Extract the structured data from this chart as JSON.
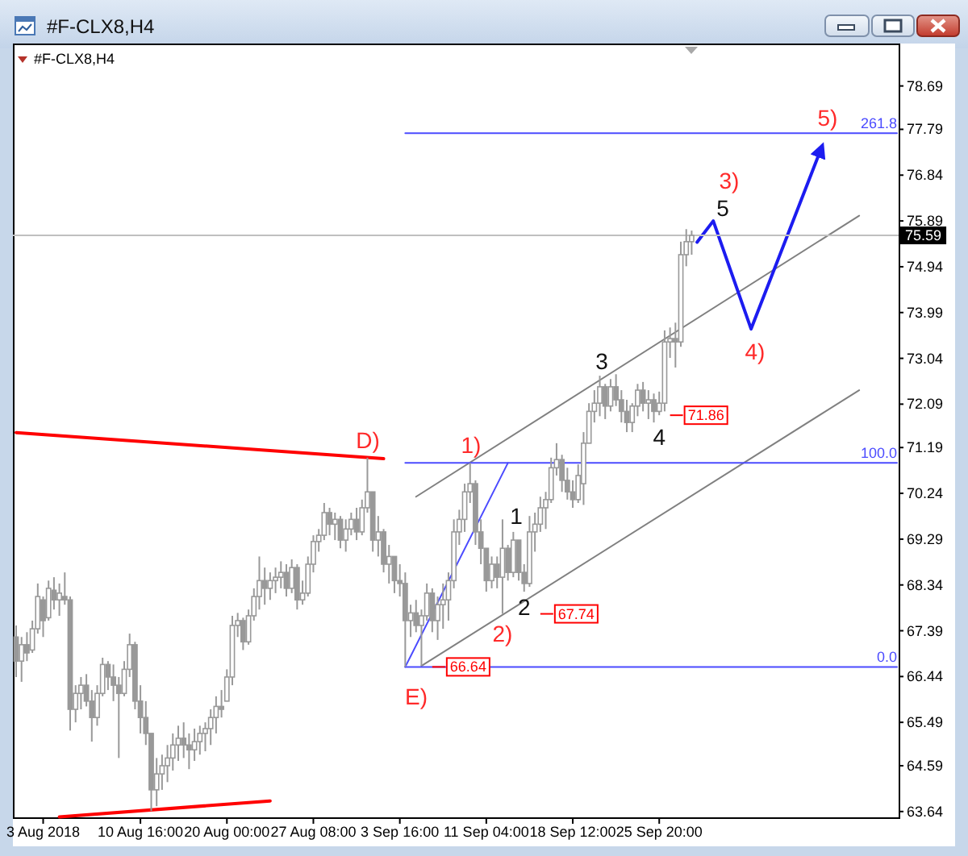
{
  "chart_data": {
    "type": "candlestick",
    "title": "#F-CLX8,H4",
    "subtitle": "#F-CLX8,H4",
    "color": "#999999",
    "categories": [
      null,
      null,
      null,
      null,
      null,
      "3 Aug 2018",
      null,
      null,
      null,
      null,
      null,
      null,
      null,
      null,
      null,
      null,
      null,
      null,
      null,
      null,
      null,
      null,
      null,
      "10 Aug 16:00",
      null,
      null,
      null,
      null,
      null,
      null,
      null,
      null,
      null,
      null,
      null,
      null,
      null,
      null,
      null,
      "20 Aug 00:00",
      null,
      null,
      null,
      null,
      null,
      null,
      null,
      null,
      null,
      null,
      null,
      null,
      null,
      null,
      null,
      "27 Aug 08:00",
      null,
      null,
      null,
      null,
      null,
      null,
      null,
      null,
      null,
      null,
      null,
      null,
      null,
      null,
      null,
      "3 Sep 16:00",
      null,
      null,
      null,
      null,
      null,
      null,
      null,
      null,
      null,
      null,
      null,
      null,
      null,
      null,
      null,
      "11 Sep 04:00",
      null,
      null,
      null,
      null,
      null,
      null,
      null,
      null,
      null,
      null,
      null,
      null,
      null,
      null,
      null,
      "18 Sep 12:00",
      null,
      null,
      null,
      null,
      null,
      null,
      null,
      null,
      null,
      null,
      null,
      null,
      null,
      null,
      null,
      "25 Sep 20:00",
      null,
      null,
      null,
      null,
      null,
      null,
      null,
      null,
      null,
      null,
      null,
      null,
      null,
      null,
      null,
      null,
      null,
      null,
      null,
      null,
      null,
      null,
      null,
      null,
      null,
      null,
      null,
      null,
      null,
      null,
      null,
      null,
      null,
      null,
      null,
      null,
      null,
      null,
      null,
      null,
      null,
      null,
      null,
      null
    ],
    "ohlc": [
      [
        67.26,
        67.5,
        66.43,
        66.76
      ],
      [
        66.76,
        67.26,
        66.33,
        67.1
      ],
      [
        67.1,
        67.36,
        66.76,
        66.93
      ],
      [
        66.99,
        67.6,
        66.93,
        67.43
      ],
      [
        67.43,
        68.37,
        67.33,
        68.1
      ],
      [
        68.03,
        68.1,
        67.26,
        67.6
      ],
      [
        67.66,
        68.43,
        67.6,
        68.27
      ],
      [
        68.23,
        68.5,
        67.83,
        68.03
      ],
      [
        68.03,
        68.37,
        67.7,
        68.17
      ],
      [
        68.1,
        68.6,
        67.93,
        68.03
      ],
      [
        68.03,
        68.1,
        65.32,
        65.76
      ],
      [
        65.76,
        66.26,
        65.49,
        66.09
      ],
      [
        66.09,
        66.43,
        65.76,
        66.26
      ],
      [
        66.26,
        66.49,
        65.82,
        65.93
      ],
      [
        65.93,
        66.16,
        65.09,
        65.59
      ],
      [
        65.59,
        66.26,
        65.42,
        66.09
      ],
      [
        66.09,
        66.83,
        66.03,
        66.69
      ],
      [
        66.69,
        66.76,
        66.16,
        66.43
      ],
      [
        66.43,
        66.69,
        65.93,
        66.26
      ],
      [
        66.26,
        66.43,
        64.75,
        66.09
      ],
      [
        66.09,
        66.76,
        66.03,
        66.59
      ],
      [
        66.59,
        67.33,
        66.43,
        67.1
      ],
      [
        67.1,
        67.16,
        65.76,
        65.93
      ],
      [
        65.93,
        66.26,
        65.26,
        65.59
      ],
      [
        65.59,
        65.93,
        65.02,
        65.26
      ],
      [
        65.26,
        65.26,
        63.65,
        64.09
      ],
      [
        64.09,
        64.75,
        63.75,
        64.42
      ],
      [
        64.42,
        64.82,
        64.09,
        64.59
      ],
      [
        64.59,
        65.02,
        64.25,
        64.75
      ],
      [
        64.75,
        65.26,
        64.49,
        65.02
      ],
      [
        65.02,
        65.42,
        64.69,
        65.16
      ],
      [
        65.16,
        65.49,
        64.75,
        65.02
      ],
      [
        65.02,
        65.26,
        64.52,
        64.92
      ],
      [
        64.92,
        65.36,
        64.69,
        65.09
      ],
      [
        65.09,
        65.42,
        64.82,
        65.26
      ],
      [
        65.26,
        65.49,
        64.89,
        65.36
      ],
      [
        65.36,
        65.76,
        65.02,
        65.59
      ],
      [
        65.59,
        66.03,
        65.26,
        65.82
      ],
      [
        65.82,
        66.16,
        65.59,
        65.76
      ],
      [
        65.93,
        66.59,
        65.93,
        66.43
      ],
      [
        66.43,
        67.7,
        66.26,
        67.5
      ],
      [
        67.5,
        67.76,
        67.26,
        67.6
      ],
      [
        67.6,
        67.66,
        66.99,
        67.16
      ],
      [
        67.16,
        67.83,
        67.1,
        67.7
      ],
      [
        67.7,
        68.27,
        67.6,
        68.1
      ],
      [
        68.1,
        68.93,
        67.83,
        68.43
      ],
      [
        68.43,
        68.7,
        67.93,
        68.27
      ],
      [
        68.27,
        68.6,
        68.03,
        68.43
      ],
      [
        68.43,
        68.7,
        68.17,
        68.5
      ],
      [
        68.5,
        68.83,
        68.27,
        68.6
      ],
      [
        68.6,
        68.77,
        68.1,
        68.27
      ],
      [
        68.27,
        68.87,
        68.17,
        68.7
      ],
      [
        68.7,
        68.77,
        67.83,
        68.03
      ],
      [
        68.03,
        68.43,
        67.93,
        68.17
      ],
      [
        68.17,
        68.93,
        68.1,
        68.77
      ],
      [
        68.77,
        69.37,
        68.6,
        69.24
      ],
      [
        69.24,
        69.5,
        69.03,
        69.37
      ],
      [
        69.37,
        70.04,
        69.27,
        69.84
      ],
      [
        69.84,
        69.94,
        69.37,
        69.6
      ],
      [
        69.6,
        69.84,
        69.27,
        69.7
      ],
      [
        69.7,
        69.77,
        69.1,
        69.27
      ],
      [
        69.27,
        69.7,
        69.03,
        69.5
      ],
      [
        69.5,
        69.84,
        69.37,
        69.7
      ],
      [
        69.7,
        69.94,
        69.27,
        69.44
      ],
      [
        69.44,
        70.11,
        69.37,
        69.94
      ],
      [
        69.94,
        70.98,
        69.84,
        70.27
      ],
      [
        70.27,
        70.27,
        69.03,
        69.27
      ],
      [
        69.27,
        69.77,
        68.93,
        69.44
      ],
      [
        69.44,
        69.5,
        68.6,
        68.77
      ],
      [
        68.77,
        69.17,
        68.37,
        68.93
      ],
      [
        68.93,
        68.93,
        68.17,
        68.43
      ],
      [
        68.43,
        68.77,
        68.1,
        68.37
      ],
      [
        68.37,
        68.6,
        66.64,
        67.6
      ],
      [
        67.6,
        67.93,
        67.26,
        67.76
      ],
      [
        67.76,
        68.03,
        67.36,
        67.5
      ],
      [
        67.5,
        67.83,
        66.66,
        67.7
      ],
      [
        67.7,
        68.37,
        67.6,
        68.17
      ],
      [
        68.17,
        68.27,
        67.36,
        67.6
      ],
      [
        67.6,
        68.1,
        67.2,
        67.93
      ],
      [
        67.93,
        68.37,
        67.43,
        68.03
      ],
      [
        68.03,
        68.6,
        67.6,
        68.43
      ],
      [
        68.43,
        69.7,
        68.27,
        69.44
      ],
      [
        69.44,
        69.9,
        69.17,
        69.7
      ],
      [
        69.7,
        70.44,
        69.44,
        70.27
      ],
      [
        70.27,
        70.87,
        70.04,
        70.44
      ],
      [
        70.44,
        70.51,
        69.17,
        69.44
      ],
      [
        69.44,
        69.7,
        68.77,
        69.1
      ],
      [
        69.1,
        69.1,
        68.2,
        68.43
      ],
      [
        68.43,
        68.93,
        68.27,
        68.77
      ],
      [
        68.77,
        68.93,
        68.27,
        68.5
      ],
      [
        68.5,
        69.7,
        67.74,
        69.1
      ],
      [
        69.1,
        69.17,
        68.43,
        68.6
      ],
      [
        68.6,
        69.44,
        68.5,
        69.27
      ],
      [
        69.27,
        69.27,
        68.43,
        68.6
      ],
      [
        68.6,
        68.77,
        68.2,
        68.37
      ],
      [
        68.37,
        69.77,
        68.3,
        69.44
      ],
      [
        69.44,
        69.84,
        69.03,
        69.6
      ],
      [
        69.6,
        70.17,
        69.44,
        69.94
      ],
      [
        69.94,
        70.27,
        69.5,
        70.11
      ],
      [
        70.11,
        70.98,
        70.04,
        70.77
      ],
      [
        70.77,
        71.28,
        70.61,
        70.94
      ],
      [
        70.94,
        71.04,
        70.27,
        70.51
      ],
      [
        70.51,
        70.77,
        70.11,
        70.27
      ],
      [
        70.27,
        70.51,
        69.94,
        70.11
      ],
      [
        70.11,
        70.84,
        70.04,
        70.61
      ],
      [
        70.44,
        71.51,
        70.0,
        71.28
      ],
      [
        71.28,
        72.11,
        71.28,
        71.94
      ],
      [
        71.94,
        72.38,
        71.71,
        72.11
      ],
      [
        72.11,
        72.68,
        71.84,
        72.45
      ],
      [
        72.45,
        72.51,
        71.78,
        72.05
      ],
      [
        72.05,
        72.61,
        71.94,
        72.45
      ],
      [
        72.45,
        72.71,
        72.05,
        72.18
      ],
      [
        72.18,
        72.38,
        71.71,
        71.94
      ],
      [
        71.94,
        72.18,
        71.51,
        71.71
      ],
      [
        71.71,
        72.11,
        71.51,
        72.05
      ],
      [
        72.05,
        72.51,
        71.84,
        72.38
      ],
      [
        72.38,
        72.55,
        71.94,
        72.11
      ],
      [
        72.11,
        72.38,
        71.78,
        72.18
      ],
      [
        72.18,
        72.31,
        71.71,
        71.94
      ],
      [
        71.94,
        72.35,
        71.86,
        72.11
      ],
      [
        72.11,
        73.62,
        71.94,
        73.38
      ],
      [
        73.38,
        73.68,
        73.05,
        73.45
      ],
      [
        73.45,
        73.78,
        72.85,
        73.38
      ],
      [
        73.38,
        75.46,
        73.28,
        75.19
      ],
      [
        75.19,
        75.72,
        74.95,
        75.46
      ],
      [
        75.46,
        75.69,
        75.19,
        75.59
      ],
      null,
      null,
      null,
      null,
      null,
      null,
      null,
      null,
      null,
      null,
      null,
      null,
      null,
      null,
      null,
      null,
      null,
      null,
      null,
      null,
      null,
      null,
      null,
      null,
      null,
      null,
      null,
      null,
      null,
      null,
      null,
      null,
      null,
      null,
      null,
      null,
      null,
      null
    ],
    "ylim": [
      63.52,
      79.57
    ],
    "yticks": [
      78.69,
      77.79,
      76.84,
      75.89,
      74.94,
      73.99,
      73.04,
      72.09,
      71.19,
      70.24,
      69.29,
      68.34,
      67.39,
      66.44,
      65.49,
      64.59,
      63.64
    ],
    "series": [
      {
        "type": "line",
        "color": "#ff0000",
        "values": [
          71.5,
          null,
          null,
          null,
          null,
          null,
          null,
          null,
          null,
          null,
          null,
          null,
          null,
          null,
          null,
          null,
          null,
          null,
          null,
          null,
          null,
          null,
          null,
          null,
          null,
          null,
          null,
          null,
          null,
          null,
          null,
          null,
          null,
          null,
          null,
          null,
          null,
          null,
          null,
          null,
          null,
          null,
          null,
          null,
          null,
          null,
          null,
          null,
          null,
          null,
          null,
          null,
          null,
          null,
          null,
          null,
          null,
          null,
          null,
          null,
          null,
          null,
          null,
          null,
          null,
          null,
          null,
          null,
          70.96,
          null,
          null,
          null,
          null,
          null,
          null,
          null,
          null,
          null,
          null,
          null,
          null,
          null,
          null,
          null,
          null,
          null,
          null,
          null,
          null,
          null,
          null,
          null,
          null,
          null,
          null,
          null,
          null,
          null,
          null,
          null,
          null,
          null,
          null,
          null,
          null,
          null,
          null,
          null,
          null,
          null,
          null,
          null,
          null,
          null,
          null,
          null,
          null,
          null,
          null,
          null,
          null,
          null,
          null,
          null,
          null,
          null,
          null,
          null,
          null,
          null,
          null,
          null,
          null,
          null,
          null,
          null,
          null,
          null,
          null,
          null,
          null,
          null,
          null,
          null,
          null,
          null,
          null,
          null,
          null,
          null,
          null,
          null,
          null,
          null,
          null,
          null,
          null,
          null,
          null,
          null,
          null,
          null,
          null,
          null
        ]
      },
      {
        "type": "line",
        "color": "#ff0000",
        "values": [
          null,
          null,
          null,
          null,
          null,
          null,
          null,
          null,
          63.53,
          null,
          null,
          null,
          null,
          null,
          null,
          null,
          null,
          null,
          null,
          null,
          null,
          null,
          null,
          null,
          null,
          null,
          null,
          null,
          null,
          null,
          null,
          null,
          null,
          null,
          null,
          null,
          null,
          null,
          null,
          null,
          null,
          null,
          null,
          null,
          null,
          null,
          null,
          63.86,
          null,
          null,
          null,
          null,
          null,
          null,
          null,
          null,
          null,
          null,
          null,
          null,
          null,
          null,
          null,
          null,
          null,
          null,
          null,
          null,
          null,
          null,
          null,
          null,
          null,
          null,
          null,
          null,
          null,
          null,
          null,
          null,
          null,
          null,
          null,
          null,
          null,
          null,
          null,
          null,
          null,
          null,
          null,
          null,
          null,
          null,
          null,
          null,
          null,
          null,
          null,
          null,
          null,
          null,
          null,
          null,
          null,
          null,
          null,
          null,
          null,
          null,
          null,
          null,
          null,
          null,
          null,
          null,
          null,
          null,
          null,
          null,
          null,
          null,
          null,
          null,
          null,
          null,
          null,
          null,
          null,
          null,
          null,
          null,
          null,
          null,
          null,
          null,
          null,
          null,
          null,
          null,
          null,
          null,
          null,
          null,
          null,
          null,
          null,
          null,
          null,
          null,
          null,
          null,
          null,
          null,
          null,
          null,
          null,
          null,
          null,
          null,
          null,
          null,
          null,
          null
        ]
      },
      {
        "type": "line",
        "color": "#808080",
        "values": [
          null,
          null,
          null,
          null,
          null,
          null,
          null,
          null,
          null,
          null,
          null,
          null,
          null,
          null,
          null,
          null,
          null,
          null,
          null,
          null,
          null,
          null,
          null,
          null,
          null,
          null,
          null,
          null,
          null,
          null,
          null,
          null,
          null,
          null,
          null,
          null,
          null,
          null,
          null,
          null,
          null,
          null,
          null,
          null,
          null,
          null,
          null,
          null,
          null,
          null,
          null,
          null,
          null,
          null,
          null,
          null,
          null,
          null,
          null,
          null,
          null,
          null,
          null,
          null,
          null,
          null,
          null,
          null,
          null,
          null,
          null,
          null,
          null,
          null,
          70.17,
          null,
          null,
          null,
          null,
          null,
          null,
          null,
          null,
          null,
          null,
          null,
          null,
          null,
          null,
          null,
          null,
          null,
          null,
          null,
          null,
          null,
          null,
          null,
          null,
          null,
          null,
          null,
          null,
          null,
          null,
          null,
          null,
          null,
          null,
          null,
          null,
          null,
          null,
          null,
          null,
          null,
          null,
          null,
          null,
          null,
          null,
          null,
          null,
          null,
          null,
          null,
          null,
          null,
          null,
          null,
          null,
          null,
          null,
          null,
          null,
          null,
          null,
          null,
          null,
          null,
          null,
          null,
          null,
          null,
          null,
          null,
          null,
          null,
          null,
          null,
          null,
          null,
          null,
          null,
          null,
          null,
          76.0,
          null,
          null,
          null,
          null,
          null,
          null,
          null
        ]
      },
      {
        "type": "line",
        "color": "#808080",
        "values": [
          null,
          null,
          null,
          null,
          null,
          null,
          null,
          null,
          null,
          null,
          null,
          null,
          null,
          null,
          null,
          null,
          null,
          null,
          null,
          null,
          null,
          null,
          null,
          null,
          null,
          null,
          null,
          null,
          null,
          null,
          null,
          null,
          null,
          null,
          null,
          null,
          null,
          null,
          null,
          null,
          null,
          null,
          null,
          null,
          null,
          null,
          null,
          null,
          null,
          null,
          null,
          null,
          null,
          null,
          null,
          null,
          null,
          null,
          null,
          null,
          null,
          null,
          null,
          null,
          null,
          null,
          null,
          null,
          null,
          null,
          null,
          null,
          null,
          null,
          null,
          66.66,
          null,
          null,
          null,
          null,
          null,
          null,
          null,
          null,
          null,
          null,
          null,
          null,
          null,
          null,
          null,
          null,
          null,
          null,
          null,
          null,
          null,
          null,
          null,
          null,
          null,
          null,
          null,
          null,
          null,
          null,
          null,
          null,
          null,
          null,
          null,
          null,
          null,
          null,
          null,
          null,
          null,
          null,
          null,
          null,
          null,
          null,
          null,
          null,
          null,
          null,
          null,
          null,
          null,
          null,
          null,
          null,
          null,
          null,
          null,
          null,
          null,
          null,
          null,
          null,
          null,
          null,
          null,
          null,
          null,
          null,
          null,
          null,
          null,
          null,
          null,
          null,
          null,
          null,
          null,
          null,
          72.38,
          null,
          null,
          null,
          null,
          null,
          null,
          null
        ]
      },
      {
        "type": "line",
        "color": "#4b4bff",
        "values": [
          null,
          null,
          null,
          null,
          null,
          null,
          null,
          null,
          null,
          null,
          null,
          null,
          null,
          null,
          null,
          null,
          null,
          null,
          null,
          null,
          null,
          null,
          null,
          null,
          null,
          null,
          null,
          null,
          null,
          null,
          null,
          null,
          null,
          null,
          null,
          null,
          null,
          null,
          null,
          null,
          null,
          null,
          null,
          null,
          null,
          null,
          null,
          null,
          null,
          null,
          null,
          null,
          null,
          null,
          null,
          null,
          null,
          null,
          null,
          null,
          null,
          null,
          null,
          null,
          null,
          null,
          null,
          null,
          null,
          null,
          null,
          null,
          66.64,
          null,
          null,
          null,
          null,
          null,
          null,
          null,
          null,
          null,
          null,
          null,
          null,
          null,
          null,
          null,
          null,
          null,
          null,
          70.87,
          null,
          null,
          null,
          null,
          null,
          null,
          null,
          null,
          null,
          null,
          null,
          null,
          null,
          null,
          null,
          null,
          null,
          null,
          null,
          null,
          null,
          null,
          null,
          null,
          null,
          null,
          null,
          null,
          null,
          null,
          null,
          null,
          null,
          null,
          null,
          null,
          null,
          null,
          null,
          null,
          null,
          null,
          null,
          null,
          null,
          null,
          null,
          null,
          null,
          null,
          null,
          null,
          null,
          null,
          null,
          null,
          null,
          null,
          null,
          null,
          null,
          null,
          null,
          null,
          null,
          null,
          null,
          null,
          null,
          null,
          null,
          null
        ]
      },
      {
        "type": "line",
        "name": "0.0",
        "color": "#4b4bff",
        "values": [
          null,
          null,
          null,
          null,
          null,
          null,
          null,
          null,
          null,
          null,
          null,
          null,
          null,
          null,
          null,
          null,
          null,
          null,
          null,
          null,
          null,
          null,
          null,
          null,
          null,
          null,
          null,
          null,
          null,
          null,
          null,
          null,
          null,
          null,
          null,
          null,
          null,
          null,
          null,
          null,
          null,
          null,
          null,
          null,
          null,
          null,
          null,
          null,
          null,
          null,
          null,
          null,
          null,
          null,
          null,
          null,
          null,
          null,
          null,
          null,
          null,
          null,
          null,
          null,
          null,
          null,
          null,
          null,
          null,
          null,
          null,
          null,
          66.64,
          null,
          null,
          null,
          null,
          null,
          null,
          null,
          null,
          null,
          null,
          null,
          null,
          null,
          null,
          null,
          null,
          null,
          null,
          null,
          null,
          null,
          null,
          null,
          null,
          null,
          null,
          null,
          null,
          null,
          null,
          null,
          null,
          null,
          null,
          null,
          null,
          null,
          null,
          null,
          null,
          null,
          null,
          null,
          null,
          null,
          null,
          null,
          null,
          null,
          null,
          null,
          null,
          null,
          null,
          null,
          null,
          null,
          null,
          null,
          null,
          null,
          null,
          null,
          null,
          null,
          null,
          null,
          null,
          null,
          null,
          null,
          null,
          null,
          null,
          null,
          null,
          null,
          null,
          null,
          null,
          null,
          null,
          null,
          null,
          null,
          null,
          null,
          null,
          null,
          null,
          66.64
        ]
      },
      {
        "type": "line",
        "name": "100.0",
        "color": "#4b4bff",
        "values": [
          null,
          null,
          null,
          null,
          null,
          null,
          null,
          null,
          null,
          null,
          null,
          null,
          null,
          null,
          null,
          null,
          null,
          null,
          null,
          null,
          null,
          null,
          null,
          null,
          null,
          null,
          null,
          null,
          null,
          null,
          null,
          null,
          null,
          null,
          null,
          null,
          null,
          null,
          null,
          null,
          null,
          null,
          null,
          null,
          null,
          null,
          null,
          null,
          null,
          null,
          null,
          null,
          null,
          null,
          null,
          null,
          null,
          null,
          null,
          null,
          null,
          null,
          null,
          null,
          null,
          null,
          null,
          null,
          null,
          null,
          null,
          null,
          70.87,
          null,
          null,
          null,
          null,
          null,
          null,
          null,
          null,
          null,
          null,
          null,
          null,
          null,
          null,
          null,
          null,
          null,
          null,
          null,
          null,
          null,
          null,
          null,
          null,
          null,
          null,
          null,
          null,
          null,
          null,
          null,
          null,
          null,
          null,
          null,
          null,
          null,
          null,
          null,
          null,
          null,
          null,
          null,
          null,
          null,
          null,
          null,
          null,
          null,
          null,
          null,
          null,
          null,
          null,
          null,
          null,
          null,
          null,
          null,
          null,
          null,
          null,
          null,
          null,
          null,
          null,
          null,
          null,
          null,
          null,
          null,
          null,
          null,
          null,
          null,
          null,
          null,
          null,
          null,
          null,
          null,
          null,
          null,
          null,
          null,
          null,
          null,
          null,
          null,
          null,
          70.87
        ]
      },
      {
        "type": "line",
        "name": "261.8",
        "color": "#4b4bff",
        "values": [
          null,
          null,
          null,
          null,
          null,
          null,
          null,
          null,
          null,
          null,
          null,
          null,
          null,
          null,
          null,
          null,
          null,
          null,
          null,
          null,
          null,
          null,
          null,
          null,
          null,
          null,
          null,
          null,
          null,
          null,
          null,
          null,
          null,
          null,
          null,
          null,
          null,
          null,
          null,
          null,
          null,
          null,
          null,
          null,
          null,
          null,
          null,
          null,
          null,
          null,
          null,
          null,
          null,
          null,
          null,
          null,
          null,
          null,
          null,
          null,
          null,
          null,
          null,
          null,
          null,
          null,
          null,
          null,
          null,
          null,
          null,
          null,
          77.71,
          null,
          null,
          null,
          null,
          null,
          null,
          null,
          null,
          null,
          null,
          null,
          null,
          null,
          null,
          null,
          null,
          null,
          null,
          null,
          null,
          null,
          null,
          null,
          null,
          null,
          null,
          null,
          null,
          null,
          null,
          null,
          null,
          null,
          null,
          null,
          null,
          null,
          null,
          null,
          null,
          null,
          null,
          null,
          null,
          null,
          null,
          null,
          null,
          null,
          null,
          null,
          null,
          null,
          null,
          null,
          null,
          null,
          null,
          null,
          null,
          null,
          null,
          null,
          null,
          null,
          null,
          null,
          null,
          null,
          null,
          null,
          null,
          null,
          null,
          null,
          null,
          null,
          null,
          null,
          null,
          null,
          null,
          null,
          null,
          null,
          null,
          null,
          null,
          null,
          null,
          77.71
        ]
      },
      {
        "type": "line",
        "color": "#1c1cf0",
        "values": [
          null,
          null,
          null,
          null,
          null,
          null,
          null,
          null,
          null,
          null,
          null,
          null,
          null,
          null,
          null,
          null,
          null,
          null,
          null,
          null,
          null,
          null,
          null,
          null,
          null,
          null,
          null,
          null,
          null,
          null,
          null,
          null,
          null,
          null,
          null,
          null,
          null,
          null,
          null,
          null,
          null,
          null,
          null,
          null,
          null,
          null,
          null,
          null,
          null,
          null,
          null,
          null,
          null,
          null,
          null,
          null,
          null,
          null,
          null,
          null,
          null,
          null,
          null,
          null,
          null,
          null,
          null,
          null,
          null,
          null,
          null,
          null,
          null,
          null,
          null,
          null,
          null,
          null,
          null,
          null,
          null,
          null,
          null,
          null,
          null,
          null,
          null,
          null,
          null,
          null,
          null,
          null,
          null,
          null,
          null,
          null,
          null,
          null,
          null,
          null,
          null,
          null,
          null,
          null,
          null,
          null,
          null,
          null,
          null,
          null,
          null,
          null,
          null,
          null,
          null,
          null,
          null,
          null,
          null,
          null,
          null,
          null,
          null,
          null,
          null,
          null,
          75.45,
          null,
          null,
          75.89,
          null,
          null,
          null,
          null,
          null,
          null,
          73.65,
          null,
          null,
          null,
          null,
          null,
          null,
          null,
          null,
          null,
          null,
          null,
          null,
          77.4,
          null,
          null,
          null,
          null,
          null,
          null,
          null,
          null,
          null,
          null,
          null,
          null,
          null,
          null
        ]
      }
    ],
    "ref_lines": [
      {
        "axis": "y",
        "value": 75.59,
        "label": "75.59",
        "color": "#c0c0c0"
      }
    ],
    "annotations": [
      "D)",
      "E)",
      "1)",
      {
        "text": "2)",
        "y": 67.74
      },
      "3)",
      "4)",
      "5)",
      "1",
      {
        "text": "2",
        "y": 68.2
      },
      "3",
      {
        "text": "4",
        "y": 71.86
      },
      "5",
      {
        "text": "71.86",
        "y": 71.86
      },
      {
        "text": "67.74",
        "y": 67.74
      },
      {
        "text": "66.64",
        "y": 66.64
      }
    ]
  }
}
